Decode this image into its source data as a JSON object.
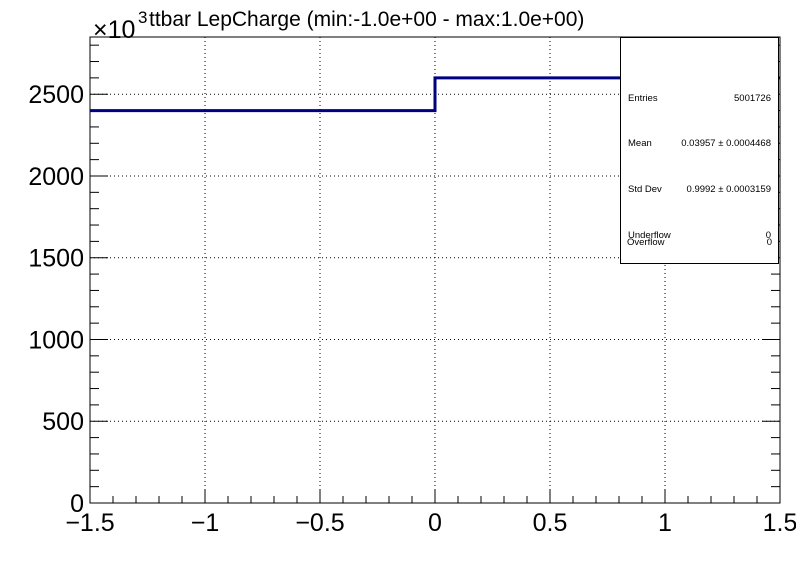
{
  "chart_data": {
    "type": "step-histogram",
    "title": "ttbar LepCharge (min:-1.0e+00 - max:1.0e+00)",
    "y_exponent_label": "×10",
    "y_exponent_power": "3",
    "xlim": [
      -1.5,
      1.5
    ],
    "ylim": [
      0,
      2850
    ],
    "x_ticks": [
      -1.5,
      -1,
      -0.5,
      0,
      0.5,
      1,
      1.5
    ],
    "x_tick_labels": [
      "−1.5",
      "−1",
      "−0.5",
      "0",
      "0.5",
      "1",
      "1.5"
    ],
    "y_ticks": [
      0,
      500,
      1000,
      1500,
      2000,
      2500
    ],
    "y_tick_labels": [
      "0",
      "500",
      "1000",
      "1500",
      "2000",
      "2500"
    ],
    "bins": [
      {
        "low": -1.5,
        "high": 0,
        "value": 2400
      },
      {
        "low": 0,
        "high": 1.5,
        "value": 2600
      }
    ],
    "line_color": "#000080",
    "grid": true
  },
  "stats": {
    "rows": [
      {
        "label": "Entries",
        "value": "5001726"
      },
      {
        "label": "Mean",
        "value": "0.03957 ± 0.0004468"
      },
      {
        "label": "Std Dev",
        "value": "0.9992 ± 0.0003159"
      },
      {
        "label": "Underflow",
        "value": "0"
      },
      {
        "label": "Overflow",
        "value": "0"
      }
    ]
  }
}
